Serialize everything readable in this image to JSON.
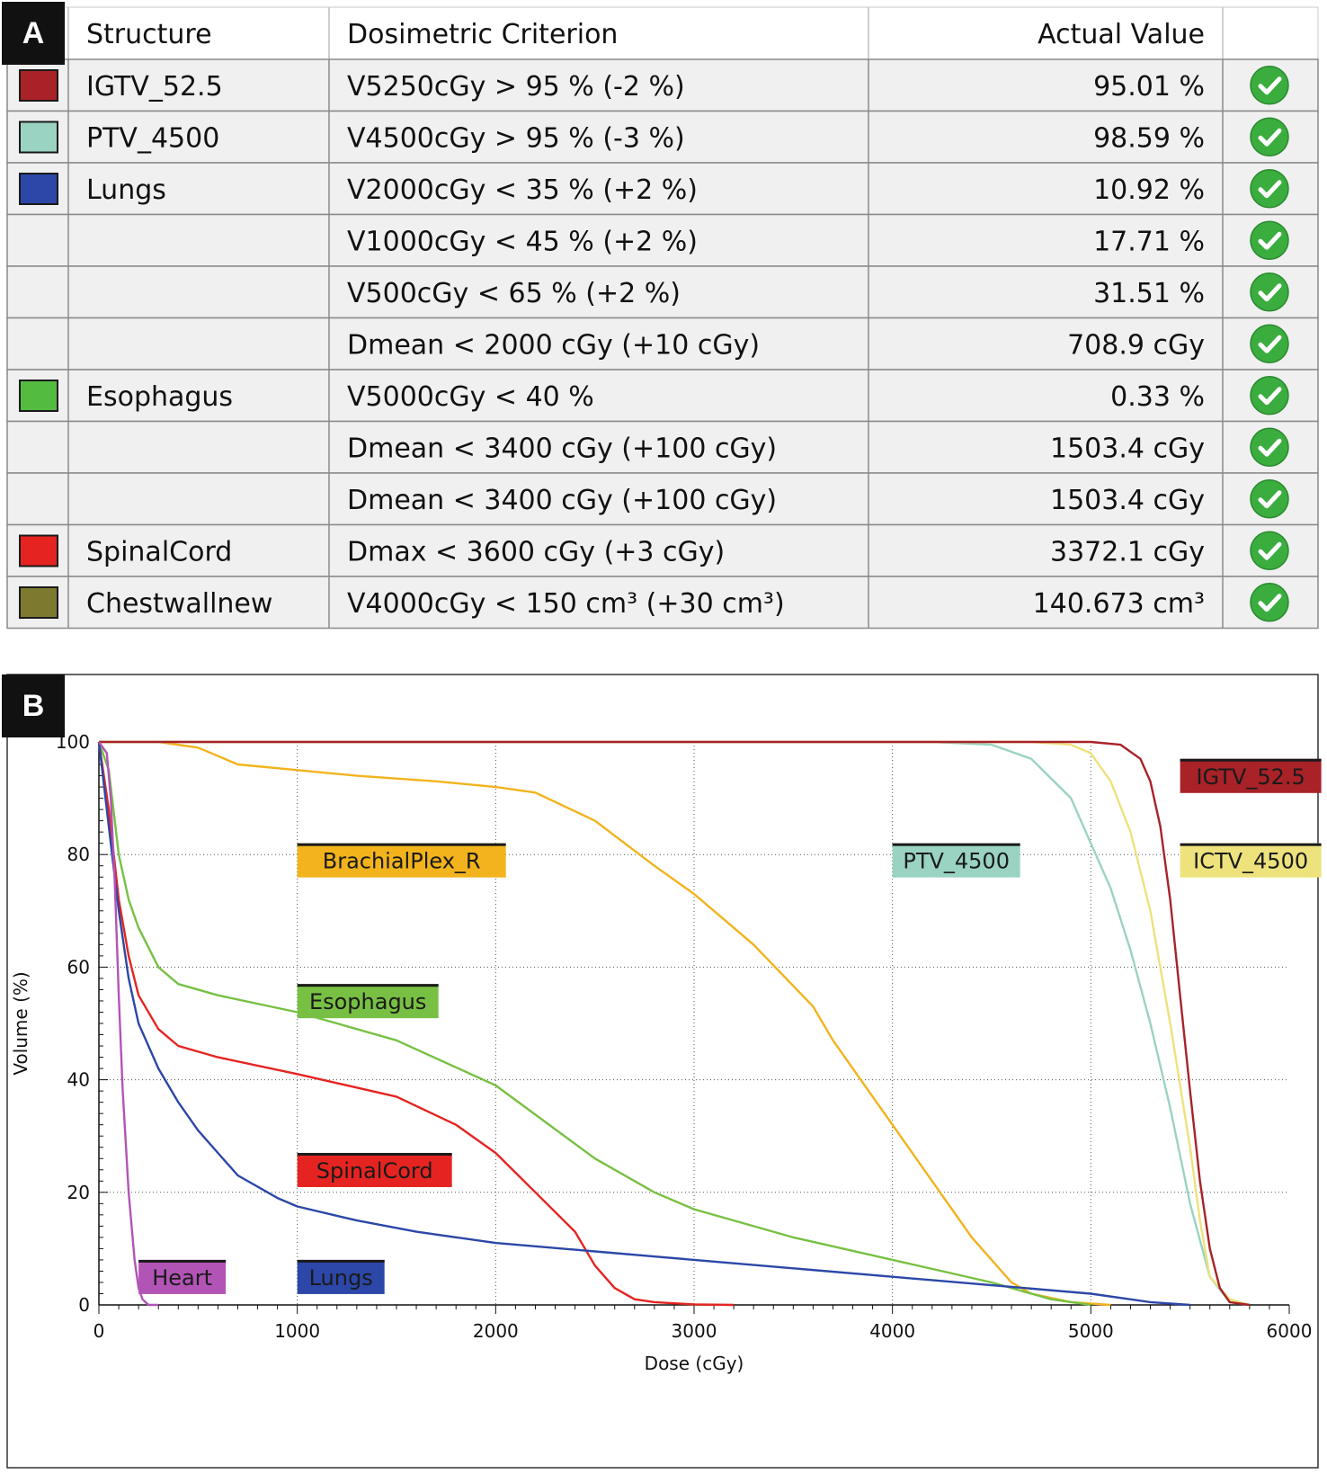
{
  "panel_a": {
    "letter": "A",
    "headers": {
      "structure": "Structure",
      "criterion": "Dosimetric Criterion",
      "actual": "Actual Value"
    },
    "rows": [
      {
        "structure": "IGTV_52.5",
        "color": "#a82228",
        "criterion": "V5250cGy > 95 % (-2 %)",
        "value": "95.01 %"
      },
      {
        "structure": "PTV_4500",
        "color": "#9ad3c2",
        "criterion": "V4500cGy > 95 % (-3 %)",
        "value": "98.59 %"
      },
      {
        "structure": "Lungs",
        "color": "#2c47a8",
        "criterion": "V2000cGy < 35 % (+2 %)",
        "value": "10.92 %"
      },
      {
        "structure": "",
        "color": "",
        "criterion": "V1000cGy < 45 % (+2 %)",
        "value": "17.71 %"
      },
      {
        "structure": "",
        "color": "",
        "criterion": "V500cGy < 65 % (+2 %)",
        "value": "31.51 %"
      },
      {
        "structure": "",
        "color": "",
        "criterion": "Dmean < 2000 cGy (+10 cGy)",
        "value": "708.9 cGy"
      },
      {
        "structure": "Esophagus",
        "color": "#54bb41",
        "criterion": "V5000cGy < 40 %",
        "value": "0.33 %"
      },
      {
        "structure": "",
        "color": "",
        "criterion": "Dmean < 3400 cGy (+100 cGy)",
        "value": "1503.4 cGy"
      },
      {
        "structure": "",
        "color": "",
        "criterion": "Dmean < 3400 cGy (+100 cGy)",
        "value": "1503.4 cGy"
      },
      {
        "structure": "SpinalCord",
        "color": "#e52421",
        "criterion": "Dmax < 3600 cGy (+3 cGy)",
        "value": "3372.1 cGy"
      },
      {
        "structure": "Chestwallnew",
        "color": "#7d7a30",
        "criterion": "V4000cGy < 150 cm³ (+30 cm³)",
        "value": "140.673 cm³"
      }
    ],
    "status_icon": "check-circle-icon",
    "status_color": "#3aad3e"
  },
  "panel_b": {
    "letter": "B"
  },
  "chart_data": {
    "type": "line",
    "xlabel": "Dose (cGy)",
    "ylabel": "Volume (%)",
    "xlim": [
      0,
      6000
    ],
    "ylim": [
      0,
      100
    ],
    "xticks": [
      0,
      1000,
      2000,
      3000,
      4000,
      5000,
      6000
    ],
    "yticks": [
      0,
      20,
      40,
      60,
      80,
      100
    ],
    "grid": true,
    "series": [
      {
        "name": "BrachialPlex_R",
        "color": "#f2b31c",
        "label_at": [
          1000,
          82
        ],
        "x": [
          0,
          300,
          500,
          700,
          1000,
          1300,
          1700,
          2000,
          2200,
          2500,
          2800,
          3000,
          3300,
          3600,
          3700,
          3900,
          4000,
          4200,
          4400,
          4600,
          4700,
          4900,
          5100
        ],
        "y": [
          100,
          100,
          99,
          96,
          95,
          94,
          93,
          92,
          91,
          86,
          78,
          73,
          64,
          53,
          47,
          37,
          32,
          22,
          12,
          4,
          2,
          0.5,
          0
        ]
      },
      {
        "name": "PTV_4500",
        "color": "#9ad3c2",
        "label_at": [
          4000,
          82
        ],
        "x": [
          0,
          4200,
          4500,
          4700,
          4900,
          5000,
          5100,
          5200,
          5300,
          5400,
          5500,
          5600,
          5700,
          5800
        ],
        "y": [
          100,
          100,
          99.5,
          97,
          90,
          82,
          74,
          63,
          50,
          35,
          18,
          5,
          0.5,
          0
        ]
      },
      {
        "name": "ICTV_4500",
        "color": "#ede27c",
        "label_at": [
          5450,
          82
        ],
        "x": [
          0,
          4700,
          4900,
          5000,
          5100,
          5200,
          5300,
          5400,
          5500,
          5550,
          5600,
          5700,
          5800
        ],
        "y": [
          100,
          100,
          99.5,
          98,
          93,
          84,
          70,
          50,
          28,
          15,
          5,
          1,
          0
        ]
      },
      {
        "name": "IGTV_52.5",
        "color": "#a82228",
        "label_at": [
          5450,
          97
        ],
        "x": [
          0,
          5000,
          5150,
          5250,
          5300,
          5350,
          5400,
          5450,
          5500,
          5550,
          5600,
          5650,
          5700,
          5800
        ],
        "y": [
          100,
          100,
          99.5,
          97,
          93,
          85,
          72,
          55,
          38,
          22,
          10,
          3,
          0.5,
          0
        ]
      },
      {
        "name": "Esophagus",
        "color": "#78c043",
        "label_at": [
          1000,
          57
        ],
        "x": [
          0,
          50,
          100,
          150,
          200,
          300,
          400,
          600,
          1000,
          1500,
          2000,
          2500,
          2800,
          3000,
          3500,
          4000,
          4500,
          4800,
          5000
        ],
        "y": [
          100,
          95,
          80,
          72,
          67,
          60,
          57,
          55,
          52,
          47,
          39,
          26,
          20,
          17,
          12,
          8,
          4,
          1,
          0
        ]
      },
      {
        "name": "SpinalCord",
        "color": "#e52421",
        "label_at": [
          1000,
          27
        ],
        "x": [
          0,
          50,
          100,
          150,
          200,
          300,
          400,
          600,
          1000,
          1500,
          1800,
          2000,
          2200,
          2400,
          2500,
          2600,
          2700,
          2800,
          3000,
          3200
        ],
        "y": [
          100,
          88,
          72,
          62,
          55,
          49,
          46,
          44,
          41,
          37,
          32,
          27,
          20,
          13,
          7,
          3,
          1,
          0.5,
          0.1,
          0
        ]
      },
      {
        "name": "Lungs",
        "color": "#2c47a8",
        "label_at": [
          1000,
          8
        ],
        "x": [
          0,
          50,
          100,
          150,
          200,
          300,
          400,
          500,
          600,
          700,
          900,
          1000,
          1300,
          1600,
          2000,
          2500,
          3000,
          3500,
          4000,
          4500,
          5000,
          5300,
          5500
        ],
        "y": [
          100,
          85,
          70,
          58,
          50,
          42,
          36,
          31,
          27,
          23,
          19,
          17.5,
          15,
          13,
          11,
          9.5,
          8,
          6.5,
          5,
          3.5,
          2,
          0.5,
          0
        ]
      },
      {
        "name": "Heart",
        "color": "#b254b6",
        "label_at": [
          200,
          8
        ],
        "x": [
          0,
          40,
          60,
          80,
          100,
          120,
          150,
          180,
          200,
          220,
          250,
          300
        ],
        "y": [
          100,
          98,
          90,
          75,
          55,
          38,
          20,
          8,
          3,
          1,
          0,
          0
        ]
      }
    ]
  }
}
